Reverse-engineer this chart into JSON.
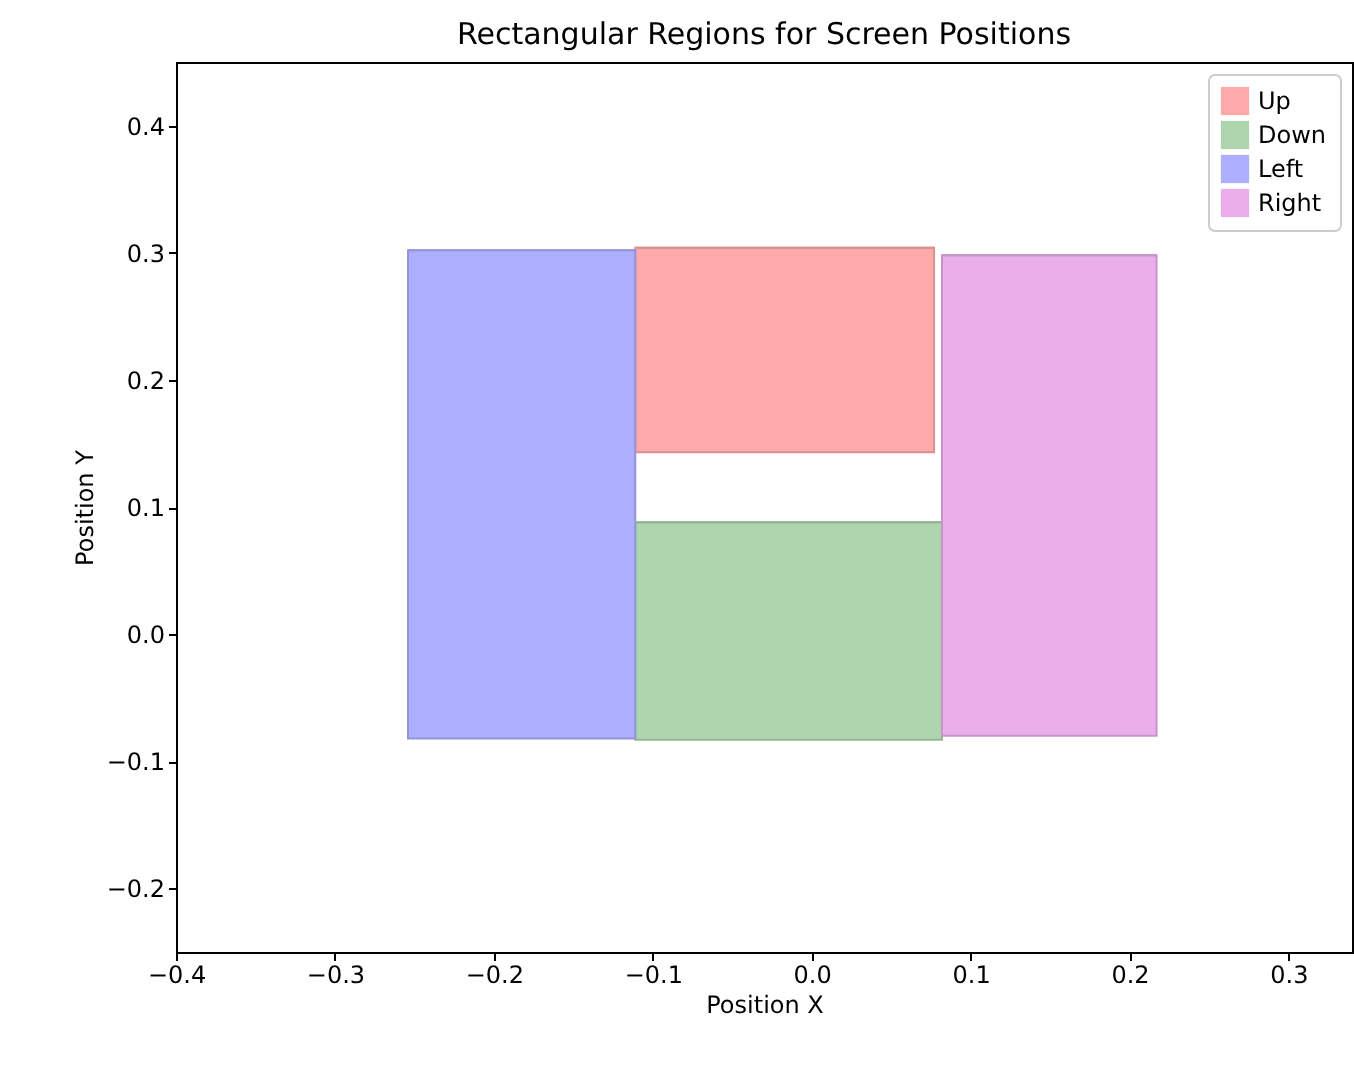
{
  "chart_data": {
    "type": "bar",
    "title": "Rectangular Regions for Screen Positions",
    "xlabel": "Position X",
    "ylabel": "Position Y",
    "xlim": [
      -0.4,
      0.34
    ],
    "ylim": [
      -0.25,
      0.45
    ],
    "xticks": [
      {
        "value": -0.4,
        "label": "−0.4"
      },
      {
        "value": -0.3,
        "label": "−0.3"
      },
      {
        "value": -0.2,
        "label": "−0.2"
      },
      {
        "value": -0.1,
        "label": "−0.1"
      },
      {
        "value": 0,
        "label": "0.0"
      },
      0.1,
      0.2,
      0.3
    ],
    "yticks": [
      {
        "value": -0.2,
        "label": "−0.2"
      },
      {
        "value": -0.1,
        "label": "−0.1"
      },
      {
        "value": 0,
        "label": "0.0"
      },
      0.1,
      0.2,
      0.3,
      0.4
    ],
    "grid": false,
    "legend": "top right",
    "series": [
      {
        "name": "Up",
        "color": "#ffaaaa",
        "x": [
          -0.017
        ],
        "xerrors": [
          0.094
        ],
        "base": [
          0.143
        ],
        "values": [
          0.161
        ]
      },
      {
        "name": "Down",
        "color": "#aed6ae",
        "x": [
          -0.0145
        ],
        "xerrors": [
          0.0965
        ],
        "base": [
          -0.083
        ],
        "values": [
          0.171
        ]
      },
      {
        "name": "Left",
        "color": "#aeaeff",
        "x": [
          -0.1825
        ],
        "xerrors": [
          0.0715
        ],
        "base": [
          -0.082
        ],
        "values": [
          0.384
        ]
      },
      {
        "name": "Right",
        "color": "#eaaeea",
        "x": [
          0.1495
        ],
        "xerrors": [
          0.0675
        ],
        "base": [
          -0.08
        ],
        "values": [
          0.378
        ]
      }
    ]
  }
}
